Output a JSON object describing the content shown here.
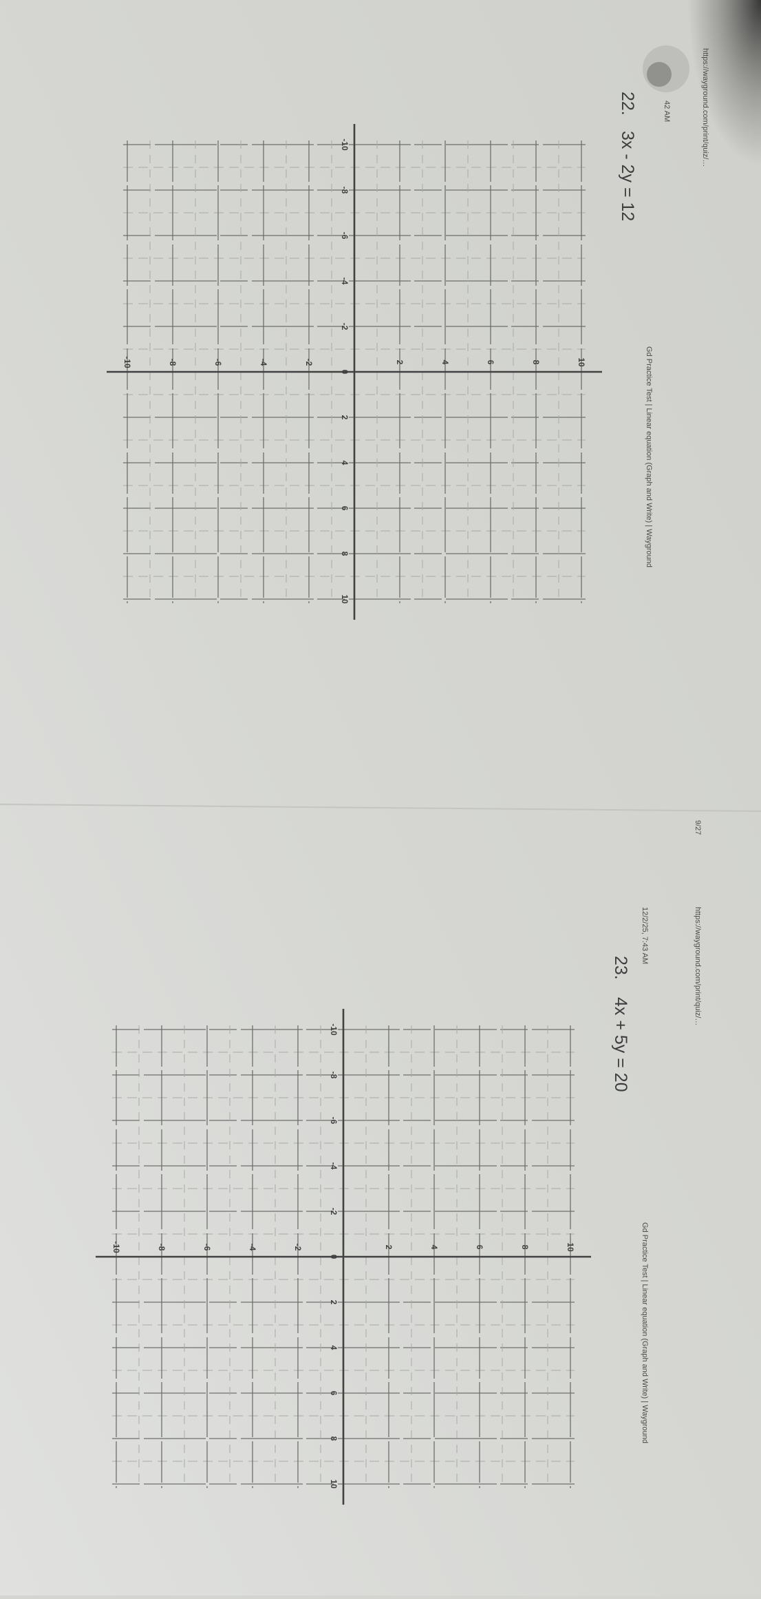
{
  "colors": {
    "paper": "#d4d5d0",
    "paper_light": "#dfe0dd",
    "ink": "#3c3d3c",
    "grid_major": "#6e6f6c",
    "grid_minor": "#a9aaa6",
    "axis": "#404140",
    "shadow": "#2f302e"
  },
  "orientation": "rotated 90 degrees clockwise",
  "pages": [
    {
      "url": "https://wayground.com/print/quiz/…",
      "timestamp": "42 AM",
      "title": "Gd Practice Test | Linear equation (Graph and Write) | Wayground",
      "question": {
        "number": "22.",
        "equation": "3x - 2y = 12"
      },
      "grid": {
        "x_range": [
          -10,
          10
        ],
        "y_range": [
          -10,
          10
        ],
        "gridlines_every": 1,
        "x_tick_labels": [
          "-10",
          "-8",
          "-6",
          "-4",
          "-2",
          "0",
          "2",
          "4",
          "6",
          "8",
          "10"
        ],
        "y_tick_labels": [
          "-10",
          "-8",
          "-6",
          "-4",
          "-2",
          "2",
          "4",
          "6",
          "8",
          "10"
        ]
      }
    },
    {
      "page_number": "9/27",
      "url": "https://wayground.com/print/quiz/…",
      "timestamp": "12/2/25, 7:43 AM",
      "title": "Gd Practice Test | Linear equation (Graph and Write) | Wayground",
      "question": {
        "number": "23.",
        "equation": "4x + 5y = 20"
      },
      "grid": {
        "x_range": [
          -10,
          10
        ],
        "y_range": [
          -10,
          10
        ],
        "gridlines_every": 1,
        "x_tick_labels": [
          "-10",
          "-8",
          "-6",
          "-4",
          "-2",
          "0",
          "2",
          "4",
          "6",
          "8",
          "10"
        ],
        "y_tick_labels": [
          "-10",
          "-8",
          "-6",
          "-4",
          "-2",
          "2",
          "4",
          "6",
          "8",
          "10"
        ]
      }
    }
  ]
}
